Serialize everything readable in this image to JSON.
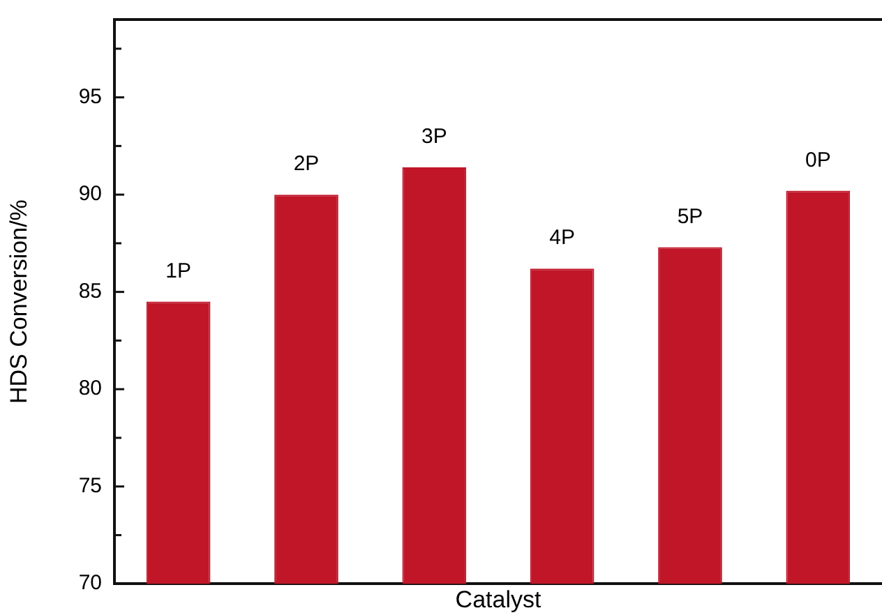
{
  "chart_data": {
    "type": "bar",
    "xlabel": "Catalyst",
    "ylabel": "HDS Conversion/%",
    "categories": [
      "1P",
      "2P",
      "3P",
      "4P",
      "5P",
      "0P"
    ],
    "values": [
      84.5,
      90.0,
      91.4,
      86.2,
      87.3,
      90.2
    ],
    "color": "#c01628",
    "ylim": [
      70,
      99
    ],
    "yticks": [
      70,
      {
        "value": 72.5,
        "label": null
      },
      75,
      {
        "value": 77.5,
        "label": null
      },
      80,
      {
        "value": 82.5,
        "label": null
      },
      85,
      {
        "value": 87.5,
        "label": null
      },
      90,
      {
        "value": 92.5,
        "label": null
      },
      95,
      {
        "value": 97.5,
        "label": null
      }
    ],
    "tick_labels": "y",
    "grid": false,
    "legend": false
  }
}
